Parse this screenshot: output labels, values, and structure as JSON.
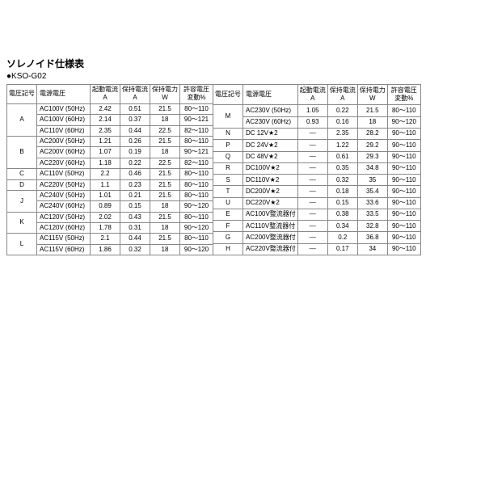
{
  "title": "ソレノイド仕様表",
  "subtitle": "●KSO-G02",
  "headers": [
    "電圧記号",
    "電源電圧",
    "起動電流\nA",
    "保持電流\nA",
    "保持電力\nW",
    "許容電圧\n変動%"
  ],
  "left": [
    {
      "code": "A",
      "span": 3,
      "rows": [
        [
          "AC100V (50Hz)",
          "2.42",
          "0.51",
          "21.5",
          "80～110"
        ],
        [
          "AC100V (60Hz)",
          "2.14",
          "0.37",
          "18",
          "90～121"
        ],
        [
          "AC110V (60Hz)",
          "2.35",
          "0.44",
          "22.5",
          "82～110"
        ]
      ]
    },
    {
      "code": "B",
      "span": 3,
      "rows": [
        [
          "AC200V (50Hz)",
          "1.21",
          "0.26",
          "21.5",
          "80～110"
        ],
        [
          "AC200V (60Hz)",
          "1.07",
          "0.19",
          "18",
          "90～121"
        ],
        [
          "AC220V (60Hz)",
          "1.18",
          "0.22",
          "22.5",
          "82～110"
        ]
      ]
    },
    {
      "code": "C",
      "span": 1,
      "rows": [
        [
          "AC110V (50Hz)",
          "2.2",
          "0.46",
          "21.5",
          "80～110"
        ]
      ]
    },
    {
      "code": "D",
      "span": 1,
      "rows": [
        [
          "AC220V (50Hz)",
          "1.1",
          "0.23",
          "21.5",
          "80～110"
        ]
      ]
    },
    {
      "code": "J",
      "span": 2,
      "rows": [
        [
          "AC240V (50Hz)",
          "1.01",
          "0.21",
          "21.5",
          "80～110"
        ],
        [
          "AC240V (60Hz)",
          "0.89",
          "0.15",
          "18",
          "90～120"
        ]
      ]
    },
    {
      "code": "K",
      "span": 2,
      "rows": [
        [
          "AC120V (50Hz)",
          "2.02",
          "0.43",
          "21.5",
          "80～110"
        ],
        [
          "AC120V (60Hz)",
          "1.78",
          "0.31",
          "18",
          "90～120"
        ]
      ]
    },
    {
      "code": "L",
      "span": 2,
      "rows": [
        [
          "AC115V (50Hz)",
          "2.1",
          "0.44",
          "21.5",
          "80～110"
        ],
        [
          "AC115V (60Hz)",
          "1.86",
          "0.32",
          "18",
          "90～120"
        ]
      ]
    }
  ],
  "right": [
    {
      "code": "M",
      "span": 2,
      "rows": [
        [
          "AC230V (50Hz)",
          "1.05",
          "0.22",
          "21.5",
          "80～110"
        ],
        [
          "AC230V (60Hz)",
          "0.93",
          "0.16",
          "18",
          "90～120"
        ]
      ]
    },
    {
      "code": "N",
      "span": 1,
      "rows": [
        [
          "DC 12V★2",
          "—",
          "2.35",
          "28.2",
          "90～110"
        ]
      ]
    },
    {
      "code": "P",
      "span": 1,
      "rows": [
        [
          "DC 24V★2",
          "—",
          "1.22",
          "29.2",
          "90～110"
        ]
      ]
    },
    {
      "code": "Q",
      "span": 1,
      "rows": [
        [
          "DC 48V★2",
          "—",
          "0.61",
          "29.3",
          "90～110"
        ]
      ]
    },
    {
      "code": "R",
      "span": 1,
      "rows": [
        [
          "DC100V★2",
          "—",
          "0.35",
          "34.8",
          "90～110"
        ]
      ]
    },
    {
      "code": "S",
      "span": 1,
      "rows": [
        [
          "DC110V★2",
          "—",
          "0.32",
          "35",
          "90～110"
        ]
      ]
    },
    {
      "code": "T",
      "span": 1,
      "rows": [
        [
          "DC200V★2",
          "—",
          "0.18",
          "35.4",
          "90～110"
        ]
      ]
    },
    {
      "code": "U",
      "span": 1,
      "rows": [
        [
          "DC220V★2",
          "—",
          "0.15",
          "33.6",
          "90～110"
        ]
      ]
    },
    {
      "code": "E",
      "span": 1,
      "rows": [
        [
          "AC100V整流器付",
          "—",
          "0.38",
          "33.5",
          "90～110"
        ]
      ]
    },
    {
      "code": "F",
      "span": 1,
      "rows": [
        [
          "AC110V整流器付",
          "—",
          "0.34",
          "32.8",
          "90～110"
        ]
      ]
    },
    {
      "code": "G",
      "span": 1,
      "rows": [
        [
          "AC200V整流器付",
          "—",
          "0.2",
          "36.8",
          "90～110"
        ]
      ]
    },
    {
      "code": "H",
      "span": 1,
      "rows": [
        [
          "AC220V整流器付",
          "—",
          "0.17",
          "34",
          "90～110"
        ]
      ]
    }
  ]
}
